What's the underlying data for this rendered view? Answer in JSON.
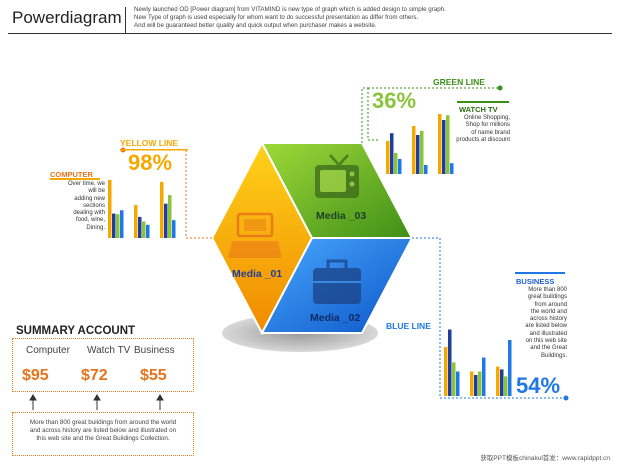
{
  "header": {
    "title": "Powerdiagram",
    "description_lines": [
      "Newly launched OD [Power diagram] from VITAMIND is new type of graph which is added design to simple graph.",
      "New Type of graph is used especially for whom want to do successful presentation as differ from others.",
      "And will be guaranteed better quality and quick output when purchaser makes a website."
    ]
  },
  "colors": {
    "yellow": "#f5a800",
    "orange": "#e8731a",
    "green": "#6ab023",
    "blue": "#1e78e6",
    "dark_blue": "#1f3f9a"
  },
  "segments": {
    "computer": {
      "label": "Media _01",
      "icon": "computer-icon"
    },
    "bag": {
      "label": "Media _02",
      "icon": "briefcase-icon"
    },
    "tv": {
      "label": "Media _03",
      "icon": "tv-icon"
    }
  },
  "yellow_line": {
    "title": "YELLOW LINE",
    "percent": "98%",
    "category": "COMPUTER",
    "text_lines": [
      "Over time, we",
      "will be",
      "adding new",
      "sections",
      "dealing with",
      "food, wine,",
      "Dining."
    ]
  },
  "green_line": {
    "title": "GREEN LINE",
    "percent": "36%",
    "category": "WATCH TV",
    "text_lines": [
      "Online Shopping,",
      "Shop for millions",
      "of name brand",
      "products at discount"
    ]
  },
  "blue_line": {
    "title": "BLUE LINE",
    "percent": "54%",
    "category": "BUSINESS",
    "text_lines": [
      "More than 800",
      "great buildings",
      "from around",
      "the world and",
      "across history",
      "are listed below",
      "and illustrated",
      "on this web site",
      "and the Great",
      "Buildings."
    ]
  },
  "summary": {
    "title": "SUMMARY ACCOUNT",
    "labels": [
      "Computer",
      "Watch TV",
      "Business"
    ],
    "values": [
      "$95",
      "$72",
      "$55"
    ],
    "bottom_lines": [
      "More than 800 great buildings from around the world",
      "and across history are listed below and illustrated on",
      "this web site and the Great Buildings Collection."
    ]
  },
  "footer": "获取PPT模板chinakul首发：www.rapidppt.cn",
  "charts": [
    {
      "group": "yellow",
      "groups": [
        [
          0.88,
          0.37,
          0.36,
          0.42
        ],
        [
          0.5,
          0.32,
          0.25,
          0.2
        ],
        [
          0.85,
          0.52,
          0.65,
          0.27
        ]
      ]
    },
    {
      "group": "green",
      "groups": [
        [
          0.55,
          0.68,
          0.35,
          0.25
        ],
        [
          0.8,
          0.65,
          0.72,
          0.15
        ],
        [
          1.0,
          0.9,
          0.98,
          0.18
        ]
      ]
    },
    {
      "group": "blue",
      "groups": [
        [
          0.7,
          0.95,
          0.48,
          0.35
        ],
        [
          0.35,
          0.3,
          0.35,
          0.55
        ],
        [
          0.42,
          0.38,
          0.28,
          0.8
        ]
      ]
    }
  ]
}
